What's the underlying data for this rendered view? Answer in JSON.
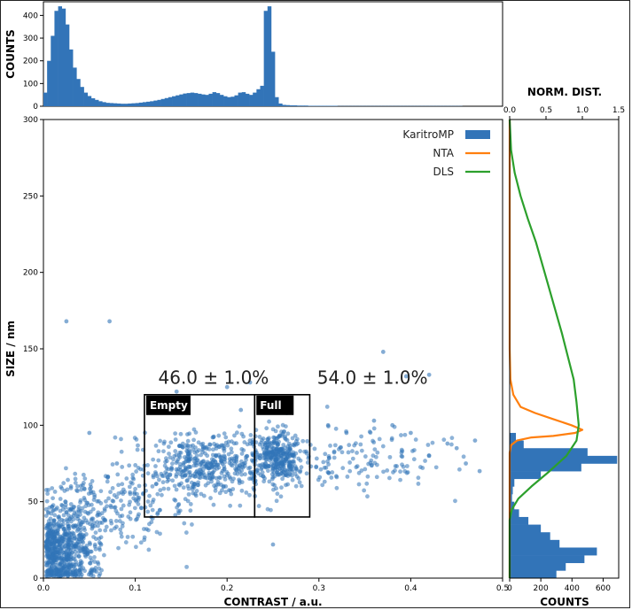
{
  "chart_data": [
    {
      "type": "bar",
      "panel": "top-histogram",
      "ylabel": "COUNTS",
      "ylim": [
        0,
        460
      ],
      "yticks": [
        "0",
        "100",
        "200",
        "300",
        "400"
      ],
      "bin_start": 0.0,
      "bin_width": 0.004,
      "values": [
        60,
        200,
        310,
        420,
        440,
        430,
        360,
        250,
        170,
        120,
        85,
        60,
        45,
        35,
        28,
        22,
        18,
        15,
        14,
        13,
        12,
        11,
        11,
        12,
        13,
        14,
        16,
        18,
        20,
        22,
        25,
        28,
        32,
        36,
        40,
        44,
        48,
        52,
        56,
        58,
        60,
        58,
        55,
        52,
        50,
        55,
        62,
        58,
        50,
        44,
        40,
        42,
        48,
        60,
        62,
        55,
        50,
        60,
        75,
        90,
        420,
        440,
        240,
        40,
        12,
        6,
        5,
        4,
        4,
        3,
        3,
        3,
        2,
        2,
        2,
        2,
        2,
        2,
        2,
        2,
        1,
        1,
        1,
        1,
        1,
        1,
        1,
        1,
        1,
        1,
        1,
        1,
        1,
        1,
        1,
        1,
        1,
        1,
        1,
        1,
        1,
        1,
        1,
        1,
        1,
        1,
        1,
        1,
        1,
        1,
        1,
        1,
        1,
        1
      ]
    },
    {
      "type": "scatter",
      "panel": "main",
      "xlabel": "CONTRAST / a.u.",
      "ylabel": "SIZE / nm",
      "xlim": [
        0,
        0.5
      ],
      "ylim": [
        0,
        300
      ],
      "xticks": [
        "0.0",
        "0.1",
        "0.2",
        "0.3",
        "0.4",
        "0.5"
      ],
      "yticks": [
        "0",
        "50",
        "100",
        "150",
        "200",
        "250",
        "300"
      ],
      "outlier_points": [
        [
          0.025,
          168
        ],
        [
          0.072,
          168
        ],
        [
          0.145,
          122
        ],
        [
          0.2,
          125
        ],
        [
          0.225,
          128
        ],
        [
          0.37,
          148
        ],
        [
          0.395,
          132
        ],
        [
          0.42,
          133
        ],
        [
          0.215,
          110
        ],
        [
          0.47,
          90
        ],
        [
          0.45,
          85
        ],
        [
          0.42,
          80
        ],
        [
          0.44,
          88
        ],
        [
          0.46,
          75
        ],
        [
          0.475,
          70
        ],
        [
          0.4,
          95
        ],
        [
          0.38,
          100
        ],
        [
          0.36,
          103
        ],
        [
          0.33,
          95
        ],
        [
          0.31,
          100
        ],
        [
          0.05,
          95
        ],
        [
          0.08,
          75
        ],
        [
          0.03,
          60
        ],
        [
          0.25,
          22
        ],
        [
          0.265,
          108
        ]
      ],
      "clusters": [
        {
          "x_mean": 0.02,
          "y_mean": 18,
          "sx": 0.018,
          "sy": 14,
          "n": 650
        },
        {
          "x_mean": 0.06,
          "y_mean": 42,
          "sx": 0.03,
          "sy": 12,
          "n": 180
        },
        {
          "x_mean": 0.19,
          "y_mean": 75,
          "sx": 0.045,
          "sy": 10,
          "n": 520
        },
        {
          "x_mean": 0.257,
          "y_mean": 80,
          "sx": 0.012,
          "sy": 8,
          "n": 260
        },
        {
          "x_mean": 0.34,
          "y_mean": 78,
          "sx": 0.05,
          "sy": 10,
          "n": 150
        },
        {
          "x_mean": 0.12,
          "y_mean": 55,
          "sx": 0.04,
          "sy": 14,
          "n": 100
        }
      ],
      "boxes": [
        {
          "name": "empty",
          "label": "Empty",
          "x0": 0.11,
          "x1": 0.23,
          "y0": 40,
          "y1": 120
        },
        {
          "name": "full",
          "label": "Full",
          "x0": 0.23,
          "x1": 0.29,
          "y0": 40,
          "y1": 120
        }
      ],
      "annotations": [
        {
          "name": "empty-percent",
          "text": "46.0 ± 1.0%",
          "x": 0.125,
          "y": 127
        },
        {
          "name": "full-percent",
          "text": "54.0 ± 1.0%",
          "x": 0.298,
          "y": 127
        }
      ]
    },
    {
      "type": "bar+line",
      "panel": "right-side",
      "orientation": "horizontal",
      "top_axis_title": "NORM. DIST.",
      "top_xlim": [
        0,
        1.5
      ],
      "top_xticks": [
        "0.0",
        "0.5",
        "1.0",
        "1.5"
      ],
      "bottom_xlabel": "COUNTS",
      "bottom_xlim": [
        0,
        700
      ],
      "bottom_xticks": [
        "0",
        "200",
        "400",
        "600"
      ],
      "ylim": [
        0,
        300
      ],
      "bin_height": 5,
      "size_hist": [
        {
          "y0": 0,
          "count": 300
        },
        {
          "y0": 5,
          "count": 360
        },
        {
          "y0": 10,
          "count": 480
        },
        {
          "y0": 15,
          "count": 560
        },
        {
          "y0": 20,
          "count": 320
        },
        {
          "y0": 25,
          "count": 260
        },
        {
          "y0": 30,
          "count": 200
        },
        {
          "y0": 35,
          "count": 120
        },
        {
          "y0": 40,
          "count": 60
        },
        {
          "y0": 45,
          "count": 30
        },
        {
          "y0": 50,
          "count": 15
        },
        {
          "y0": 55,
          "count": 20
        },
        {
          "y0": 60,
          "count": 30
        },
        {
          "y0": 65,
          "count": 200
        },
        {
          "y0": 70,
          "count": 460
        },
        {
          "y0": 75,
          "count": 690
        },
        {
          "y0": 80,
          "count": 500
        },
        {
          "y0": 85,
          "count": 90
        },
        {
          "y0": 90,
          "count": 40
        }
      ],
      "legend": [
        {
          "name": "legend-karitromp",
          "label": "KaritroMP",
          "color": "#3274b8",
          "kind": "patch"
        },
        {
          "name": "legend-nta",
          "label": "NTA",
          "color": "#ff7f0e",
          "kind": "line"
        },
        {
          "name": "legend-dls",
          "label": "DLS",
          "color": "#2ca02c",
          "kind": "line"
        }
      ],
      "series": [
        {
          "name": "NTA",
          "color": "#ff7f0e",
          "points": [
            [
              0.0,
              300
            ],
            [
              0.0,
              150
            ],
            [
              0.01,
              130
            ],
            [
              0.05,
              120
            ],
            [
              0.15,
              112
            ],
            [
              0.35,
              108
            ],
            [
              0.6,
              104
            ],
            [
              0.85,
              100
            ],
            [
              1.0,
              97
            ],
            [
              0.9,
              95
            ],
            [
              0.6,
              93
            ],
            [
              0.3,
              92
            ],
            [
              0.1,
              90
            ],
            [
              0.02,
              87
            ],
            [
              0.0,
              82
            ],
            [
              0.0,
              0
            ]
          ]
        },
        {
          "name": "DLS",
          "color": "#2ca02c",
          "points": [
            [
              0.0,
              300
            ],
            [
              0.02,
              280
            ],
            [
              0.07,
              265
            ],
            [
              0.15,
              250
            ],
            [
              0.25,
              235
            ],
            [
              0.36,
              220
            ],
            [
              0.48,
              200
            ],
            [
              0.6,
              180
            ],
            [
              0.72,
              160
            ],
            [
              0.8,
              145
            ],
            [
              0.88,
              130
            ],
            [
              0.92,
              115
            ],
            [
              0.95,
              100
            ],
            [
              0.92,
              90
            ],
            [
              0.78,
              80
            ],
            [
              0.55,
              70
            ],
            [
              0.3,
              60
            ],
            [
              0.12,
              52
            ],
            [
              0.03,
              45
            ],
            [
              0.0,
              38
            ],
            [
              0.0,
              0
            ]
          ]
        }
      ]
    }
  ]
}
